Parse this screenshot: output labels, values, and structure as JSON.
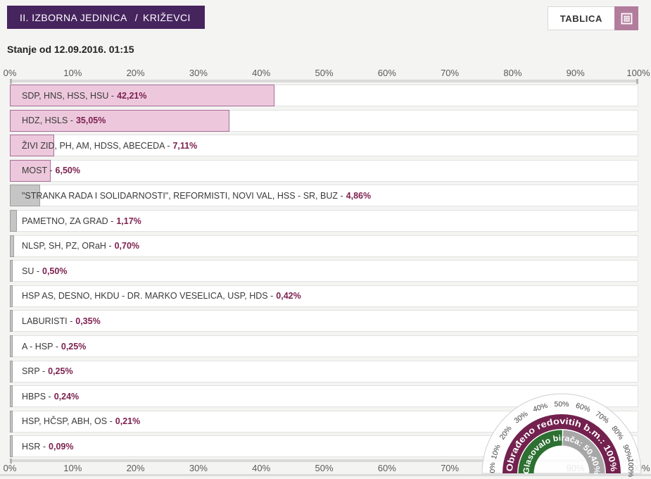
{
  "header": {
    "district_badge": "II. IZBORNA JEDINICA",
    "separator": "/",
    "district_name": "KRIŽEVCI",
    "tablica_label": "TABLICA",
    "status_line": "Stanje od 12.09.2016. 01:15"
  },
  "colors": {
    "badge_purple": "#46245e",
    "bar_pink": "#edc8dc",
    "bar_pink_border": "#a56d97",
    "bar_gray": "#c5c5c5",
    "bar_gray_border": "#9e9e9e",
    "percent_text": "#7d2150",
    "button_icon_bg": "#b27d9d",
    "gauge_maroon": "#73214e",
    "gauge_green": "#2d7031",
    "gauge_gray": "#a7a7a7"
  },
  "chart_data": {
    "type": "bar",
    "orientation": "horizontal",
    "xlim": [
      0,
      100
    ],
    "axis_ticks": [
      "0%",
      "10%",
      "20%",
      "30%",
      "40%",
      "50%",
      "60%",
      "70%",
      "80%",
      "90%",
      "100%"
    ],
    "grid": false,
    "series": [
      {
        "label": "SDP, HNS, HSS, HSU",
        "value": 42.21,
        "percent_display": "42,21%",
        "bar_style": "pink"
      },
      {
        "label": "HDZ, HSLS",
        "value": 35.05,
        "percent_display": "35,05%",
        "bar_style": "pink"
      },
      {
        "label": "ŽIVI ZID, PH, AM, HDSS, ABECEDA",
        "value": 7.11,
        "percent_display": "7,11%",
        "bar_style": "pink"
      },
      {
        "label": "MOST",
        "value": 6.5,
        "percent_display": "6,50%",
        "bar_style": "pink"
      },
      {
        "label": "\"STRANKA RADA I SOLIDARNOSTI\", REFORMISTI, NOVI VAL, HSS - SR, BUZ",
        "value": 4.86,
        "percent_display": "4,86%",
        "bar_style": "gray"
      },
      {
        "label": "PAMETNO, ZA GRAD",
        "value": 1.17,
        "percent_display": "1,17%",
        "bar_style": "gray"
      },
      {
        "label": "NLSP, SH, PZ, ORaH",
        "value": 0.7,
        "percent_display": "0,70%",
        "bar_style": "gray"
      },
      {
        "label": "SU",
        "value": 0.5,
        "percent_display": "0,50%",
        "bar_style": "gray"
      },
      {
        "label": "HSP AS, DESNO, HKDU - DR. MARKO VESELICA, USP, HDS",
        "value": 0.42,
        "percent_display": "0,42%",
        "bar_style": "gray"
      },
      {
        "label": "LABURISTI",
        "value": 0.35,
        "percent_display": "0,35%",
        "bar_style": "gray"
      },
      {
        "label": "A - HSP",
        "value": 0.25,
        "percent_display": "0,25%",
        "bar_style": "gray"
      },
      {
        "label": "SRP",
        "value": 0.25,
        "percent_display": "0,25%",
        "bar_style": "gray"
      },
      {
        "label": "HBPS",
        "value": 0.24,
        "percent_display": "0,24%",
        "bar_style": "gray"
      },
      {
        "label": "HSP, HČSP, ABH, OS",
        "value": 0.21,
        "percent_display": "0,21%",
        "bar_style": "gray"
      },
      {
        "label": "HSR",
        "value": 0.09,
        "percent_display": "0,09%",
        "bar_style": "gray"
      }
    ],
    "gauge": {
      "tick_labels": [
        "0%",
        "10%",
        "20%",
        "30%",
        "40%",
        "50%",
        "60%",
        "70%",
        "80%",
        "90%",
        "100%"
      ],
      "outer_ring": {
        "label": "Obrađeno redovitih b.m.",
        "value": 100,
        "display": "Obrađeno redovitih b.m.: 100%",
        "color": "#73214e"
      },
      "inner_ring": {
        "label": "Glasovalo birača",
        "value": 50.4,
        "display": "Glasovalo birača: 50,40%",
        "color": "#2d7031",
        "rest_color": "#a7a7a7"
      }
    }
  }
}
